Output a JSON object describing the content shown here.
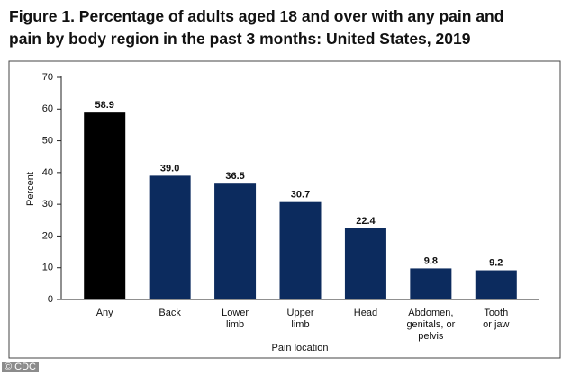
{
  "chart_data": {
    "type": "bar",
    "title": "Figure 1. Percentage of adults aged 18 and over with any pain and\npain by body region in the past 3 months: United States, 2019",
    "categories": [
      "Any",
      "Back",
      "Lower\nlimb",
      "Upper\nlimb",
      "Head",
      "Abdomen,\ngenitals, or\npelvis",
      "Tooth\nor jaw"
    ],
    "values": [
      58.9,
      39.0,
      36.5,
      30.7,
      22.4,
      9.8,
      9.2
    ],
    "value_labels": [
      "58.9",
      "39.0",
      "36.5",
      "30.7",
      "22.4",
      "9.8",
      "9.2"
    ],
    "colors": [
      "#000000",
      "#0c2b5e",
      "#0c2b5e",
      "#0c2b5e",
      "#0c2b5e",
      "#0c2b5e",
      "#0c2b5e"
    ],
    "ylim": [
      0,
      70
    ],
    "yticks": [
      0,
      10,
      20,
      30,
      40,
      50,
      60,
      70
    ],
    "xlabel": "Pain location",
    "ylabel": "Percent",
    "source": "© CDC"
  }
}
